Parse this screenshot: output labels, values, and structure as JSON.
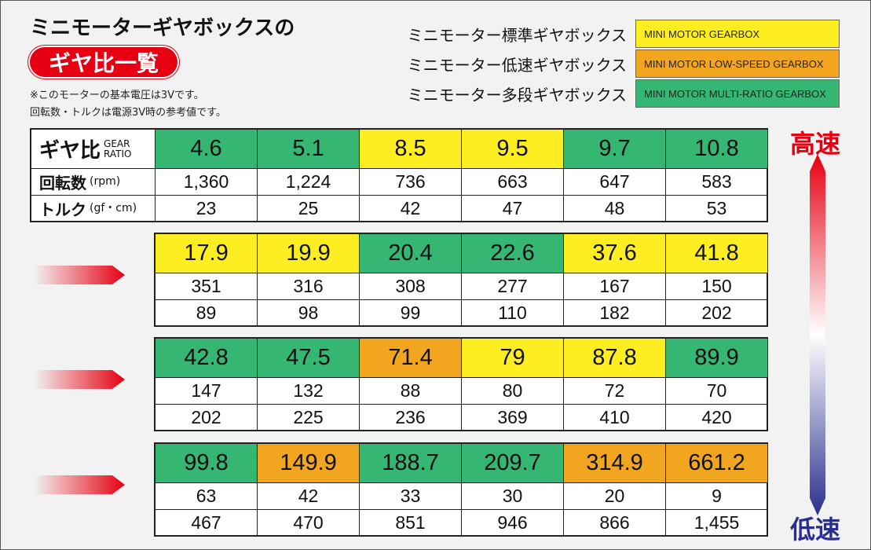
{
  "header": {
    "title_line1": "ミニモーターギヤボックスの",
    "title_line2": "ギヤ比一覧",
    "notes": [
      "※このモーターの基本電圧は3Vです。",
      "回転数・トルクは電源3V時の参考値です。"
    ]
  },
  "legend": [
    {
      "label": "ミニモーター標準ギヤボックス",
      "badge": "MINI MOTOR GEARBOX",
      "color": "#fcee21"
    },
    {
      "label": "ミニモーター低速ギヤボックス",
      "badge": "MINI MOTOR LOW-SPEED GEARBOX",
      "color": "#f2a51f"
    },
    {
      "label": "ミニモーター多段ギヤボックス",
      "badge": "MINI MOTOR MULTI-RATIO GEARBOX",
      "color": "#35b672"
    }
  ],
  "table": {
    "row_labels": [
      {
        "main": "ギヤ比",
        "sub": [
          "GEAR",
          "RATIO"
        ]
      },
      {
        "main": "回転数",
        "sub": [
          "(rpm)"
        ]
      },
      {
        "main": "トルク",
        "sub": [
          "(gf・cm)"
        ]
      }
    ],
    "blocks": [
      {
        "ratios": [
          "4.6",
          "5.1",
          "8.5",
          "9.5",
          "9.7",
          "10.8"
        ],
        "colors": [
          "#35b672",
          "#35b672",
          "#fcee21",
          "#fcee21",
          "#35b672",
          "#35b672"
        ],
        "rpm": [
          "1,360",
          "1,224",
          "736",
          "663",
          "647",
          "583"
        ],
        "torque": [
          "23",
          "25",
          "42",
          "47",
          "48",
          "53"
        ]
      },
      {
        "ratios": [
          "17.9",
          "19.9",
          "20.4",
          "22.6",
          "37.6",
          "41.8"
        ],
        "colors": [
          "#fcee21",
          "#fcee21",
          "#35b672",
          "#35b672",
          "#fcee21",
          "#fcee21"
        ],
        "rpm": [
          "351",
          "316",
          "308",
          "277",
          "167",
          "150"
        ],
        "torque": [
          "89",
          "98",
          "99",
          "110",
          "182",
          "202"
        ]
      },
      {
        "ratios": [
          "42.8",
          "47.5",
          "71.4",
          "79",
          "87.8",
          "89.9"
        ],
        "colors": [
          "#35b672",
          "#35b672",
          "#f2a51f",
          "#fcee21",
          "#fcee21",
          "#35b672"
        ],
        "rpm": [
          "147",
          "132",
          "88",
          "80",
          "72",
          "70"
        ],
        "torque": [
          "202",
          "225",
          "236",
          "369",
          "410",
          "420"
        ]
      },
      {
        "ratios": [
          "99.8",
          "149.9",
          "188.7",
          "209.7",
          "314.9",
          "661.2"
        ],
        "colors": [
          "#35b672",
          "#f2a51f",
          "#35b672",
          "#35b672",
          "#f2a51f",
          "#f2a51f"
        ],
        "rpm": [
          "63",
          "42",
          "33",
          "30",
          "20",
          "9"
        ],
        "torque": [
          "467",
          "470",
          "851",
          "946",
          "866",
          "1,455"
        ]
      }
    ]
  },
  "speed_labels": {
    "high": "高速",
    "low": "低速"
  }
}
